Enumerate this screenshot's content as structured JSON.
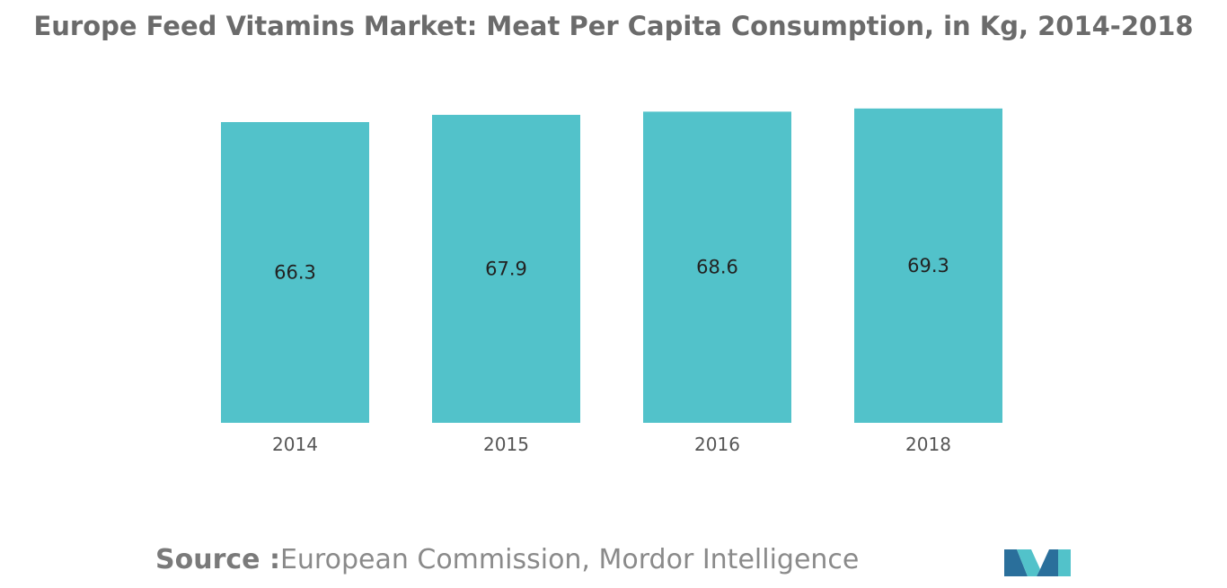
{
  "title": "Europe Feed Vitamins Market: Meat Per Capita Consumption, in Kg, 2014-2018",
  "source": {
    "prefix": "Source :",
    "text": "European Commission, Mordor Intelligence"
  },
  "colors": {
    "bar": "#52c2ca",
    "logo_dark": "#2a6f9b",
    "logo_light": "#52c2ca"
  },
  "logo": {
    "icon": "mordor-intelligence-logo"
  },
  "chart_data": {
    "type": "bar",
    "categories": [
      "2014",
      "2015",
      "2016",
      "2018"
    ],
    "values": [
      66.3,
      67.9,
      68.6,
      69.3
    ],
    "data_labels": [
      "66.3",
      "67.9",
      "68.6",
      "69.3"
    ],
    "title": "Europe Feed Vitamins Market: Meat Per Capita Consumption, in Kg, 2014-2018",
    "xlabel": "",
    "ylabel": "",
    "ylim": [
      0,
      76
    ],
    "grid": false,
    "legend": "none"
  }
}
